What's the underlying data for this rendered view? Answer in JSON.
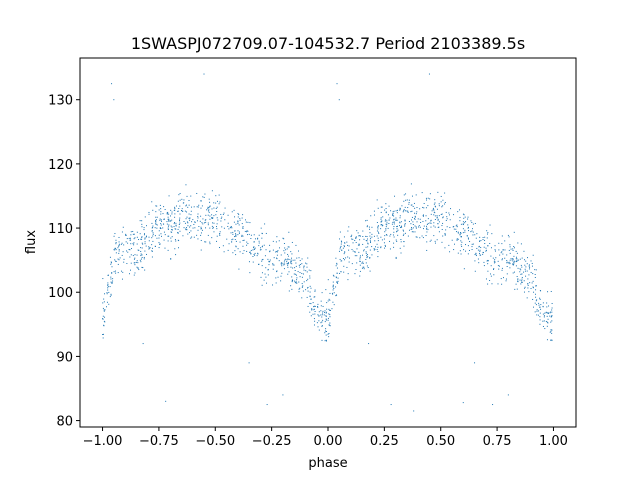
{
  "chart_data": {
    "type": "scatter",
    "title": "1SWASPJ072709.07-104532.7 Period 2103389.5s",
    "xlabel": "phase",
    "ylabel": "flux",
    "xlim": [
      -1.1,
      1.1
    ],
    "ylim": [
      79,
      136.5
    ],
    "xticks": [
      -1.0,
      -0.75,
      -0.5,
      -0.25,
      0.0,
      0.25,
      0.5,
      0.75,
      1.0
    ],
    "xtick_labels": [
      "−1.00",
      "−0.75",
      "−0.50",
      "−0.25",
      "0.00",
      "0.25",
      "0.50",
      "0.75",
      "1.00"
    ],
    "yticks": [
      80,
      90,
      100,
      110,
      120,
      130
    ],
    "ytick_labels": [
      "80",
      "90",
      "100",
      "110",
      "120",
      "130"
    ],
    "grid": false,
    "marker_color": "#1f77b4",
    "series": [
      {
        "profile": {
          "phase": [
            0.0,
            0.05,
            0.1,
            0.15,
            0.2,
            0.25,
            0.3,
            0.35,
            0.4,
            0.45,
            0.5,
            0.55,
            0.6,
            0.65,
            0.7,
            0.75,
            0.8,
            0.85,
            0.9,
            0.95,
            1.0
          ],
          "flux": [
            96,
            105,
            107,
            106,
            108,
            110,
            110,
            112,
            111,
            111,
            112,
            110,
            109,
            108,
            106,
            105,
            106,
            104,
            102,
            97,
            95
          ]
        },
        "scatter_spread": 4,
        "points_per_cycle": 900,
        "outliers": [
          [
            -0.96,
            132.5
          ],
          [
            -0.95,
            130
          ],
          [
            -0.55,
            134
          ],
          [
            -0.72,
            83
          ],
          [
            -0.27,
            82.5
          ],
          [
            0.05,
            130
          ],
          [
            0.04,
            132.5
          ],
          [
            0.45,
            134
          ],
          [
            0.28,
            82.5
          ],
          [
            0.38,
            81.5
          ],
          [
            0.73,
            82.5
          ],
          [
            0.6,
            82.8
          ],
          [
            -0.2,
            84
          ],
          [
            0.8,
            84
          ],
          [
            -0.82,
            92
          ],
          [
            0.18,
            92
          ],
          [
            -0.35,
            89
          ],
          [
            0.65,
            89
          ]
        ]
      }
    ]
  }
}
